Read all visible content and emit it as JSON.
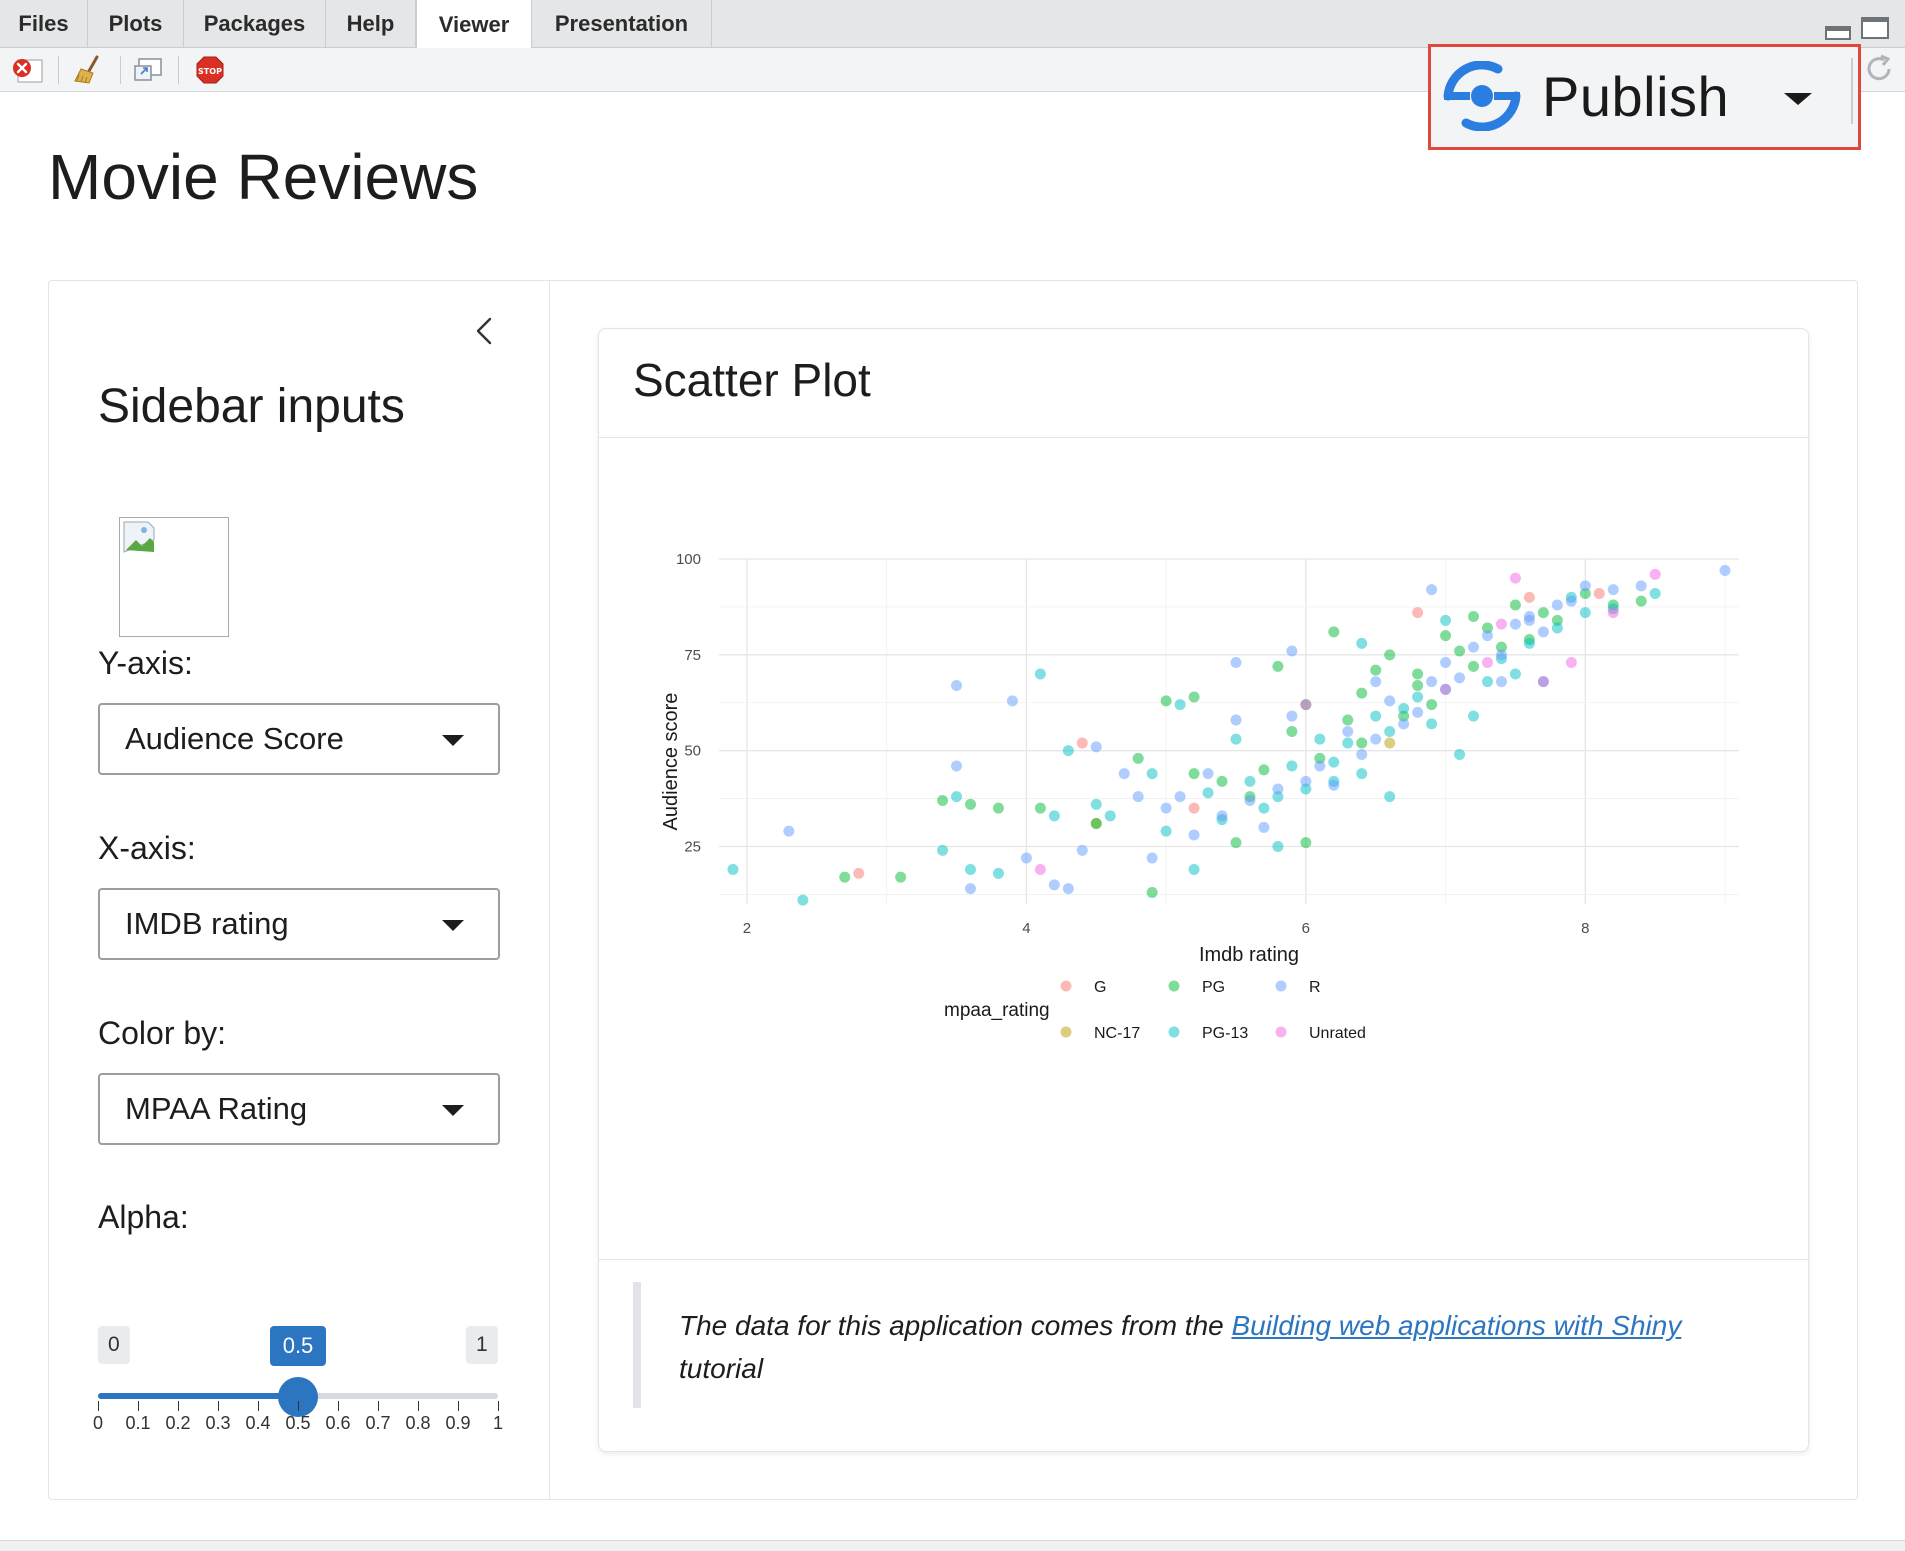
{
  "tabs": [
    "Files",
    "Plots",
    "Packages",
    "Help",
    "Viewer",
    "Presentation"
  ],
  "active_tab": "Viewer",
  "publish": {
    "label": "Publish"
  },
  "page_title": "Movie Reviews",
  "sidebar": {
    "title": "Sidebar inputs",
    "y_axis": {
      "label": "Y-axis:",
      "value": "Audience Score"
    },
    "x_axis": {
      "label": "X-axis:",
      "value": "IMDB rating"
    },
    "color_by": {
      "label": "Color by:",
      "value": "MPAA Rating"
    },
    "alpha": {
      "label": "Alpha:",
      "min": "0",
      "max": "1",
      "value": "0.5",
      "value_fraction": 0.5,
      "ticks": [
        "0",
        "0.1",
        "0.2",
        "0.3",
        "0.4",
        "0.5",
        "0.6",
        "0.7",
        "0.8",
        "0.9",
        "1"
      ]
    }
  },
  "card": {
    "title": "Scatter Plot",
    "footer_text": "The data for this application comes from the ",
    "footer_link": "Building web applications with Shiny",
    "footer_tail": "tutorial"
  },
  "chart_data": {
    "type": "scatter",
    "xlabel": "Imdb rating",
    "ylabel": "Audience score",
    "xlim": [
      1.8,
      9.1
    ],
    "ylim": [
      10,
      100
    ],
    "xticks": [
      "2",
      "4",
      "6",
      "8"
    ],
    "yticks": [
      "25",
      "50",
      "75",
      "100"
    ],
    "legend_title": "mpaa_rating",
    "legend_position": "bottom",
    "alpha": 0.5,
    "series": [
      {
        "name": "G",
        "color": "#f8766d",
        "points": [
          [
            2.8,
            18
          ],
          [
            4.4,
            52
          ],
          [
            5.2,
            35
          ],
          [
            6.8,
            86
          ],
          [
            7.6,
            90
          ],
          [
            8.1,
            91
          ]
        ]
      },
      {
        "name": "NC-17",
        "color": "#b79f00",
        "points": [
          [
            4.5,
            31
          ],
          [
            6.6,
            52
          ]
        ]
      },
      {
        "name": "PG",
        "color": "#00ba38",
        "points": [
          [
            2.7,
            17
          ],
          [
            3.1,
            17
          ],
          [
            3.4,
            37
          ],
          [
            3.6,
            36
          ],
          [
            3.8,
            35
          ],
          [
            4.1,
            35
          ],
          [
            4.5,
            31
          ],
          [
            4.8,
            48
          ],
          [
            4.9,
            13
          ],
          [
            5.0,
            63
          ],
          [
            5.2,
            64
          ],
          [
            5.4,
            42
          ],
          [
            5.5,
            26
          ],
          [
            5.7,
            45
          ],
          [
            5.8,
            72
          ],
          [
            5.9,
            55
          ],
          [
            6.0,
            62
          ],
          [
            6.1,
            48
          ],
          [
            6.2,
            81
          ],
          [
            6.3,
            58
          ],
          [
            6.4,
            65
          ],
          [
            6.5,
            71
          ],
          [
            6.6,
            75
          ],
          [
            6.7,
            59
          ],
          [
            6.8,
            70
          ],
          [
            6.9,
            62
          ],
          [
            7.0,
            80
          ],
          [
            7.1,
            76
          ],
          [
            7.2,
            85
          ],
          [
            7.3,
            82
          ],
          [
            7.4,
            77
          ],
          [
            7.5,
            88
          ],
          [
            7.6,
            79
          ],
          [
            7.7,
            86
          ],
          [
            7.8,
            84
          ],
          [
            8.0,
            91
          ],
          [
            8.2,
            88
          ],
          [
            8.4,
            89
          ],
          [
            5.2,
            44
          ],
          [
            5.6,
            38
          ],
          [
            6.0,
            26
          ],
          [
            6.4,
            52
          ],
          [
            6.8,
            67
          ],
          [
            7.2,
            72
          ]
        ]
      },
      {
        "name": "PG-13",
        "color": "#00bfc4",
        "points": [
          [
            1.9,
            19
          ],
          [
            2.4,
            11
          ],
          [
            3.4,
            24
          ],
          [
            3.5,
            38
          ],
          [
            3.6,
            19
          ],
          [
            3.8,
            18
          ],
          [
            4.1,
            70
          ],
          [
            4.2,
            33
          ],
          [
            4.3,
            50
          ],
          [
            4.5,
            36
          ],
          [
            4.6,
            33
          ],
          [
            4.9,
            44
          ],
          [
            5.0,
            29
          ],
          [
            5.1,
            62
          ],
          [
            5.2,
            19
          ],
          [
            5.3,
            39
          ],
          [
            5.4,
            32
          ],
          [
            5.5,
            53
          ],
          [
            5.6,
            42
          ],
          [
            5.7,
            35
          ],
          [
            5.8,
            38
          ],
          [
            5.9,
            46
          ],
          [
            6.0,
            40
          ],
          [
            6.1,
            53
          ],
          [
            6.2,
            47
          ],
          [
            6.3,
            52
          ],
          [
            6.4,
            44
          ],
          [
            6.5,
            59
          ],
          [
            6.6,
            55
          ],
          [
            6.7,
            61
          ],
          [
            6.8,
            64
          ],
          [
            6.9,
            57
          ],
          [
            7.0,
            66
          ],
          [
            7.1,
            49
          ],
          [
            7.2,
            59
          ],
          [
            7.3,
            68
          ],
          [
            7.4,
            74
          ],
          [
            7.5,
            70
          ],
          [
            7.6,
            78
          ],
          [
            7.7,
            68
          ],
          [
            7.8,
            82
          ],
          [
            7.9,
            90
          ],
          [
            8.0,
            86
          ],
          [
            8.2,
            87
          ],
          [
            8.5,
            91
          ],
          [
            6.4,
            78
          ],
          [
            6.6,
            38
          ],
          [
            7.0,
            84
          ],
          [
            5.8,
            25
          ],
          [
            6.2,
            42
          ]
        ]
      },
      {
        "name": "R",
        "color": "#619cff",
        "points": [
          [
            2.3,
            29
          ],
          [
            3.5,
            67
          ],
          [
            3.5,
            46
          ],
          [
            3.6,
            14
          ],
          [
            3.9,
            63
          ],
          [
            4.0,
            22
          ],
          [
            4.2,
            15
          ],
          [
            4.3,
            14
          ],
          [
            4.4,
            24
          ],
          [
            4.5,
            51
          ],
          [
            4.7,
            44
          ],
          [
            4.8,
            38
          ],
          [
            4.9,
            22
          ],
          [
            5.0,
            35
          ],
          [
            5.1,
            38
          ],
          [
            5.2,
            28
          ],
          [
            5.3,
            44
          ],
          [
            5.4,
            33
          ],
          [
            5.5,
            58
          ],
          [
            5.6,
            37
          ],
          [
            5.7,
            30
          ],
          [
            5.8,
            40
          ],
          [
            5.9,
            59
          ],
          [
            6.0,
            42
          ],
          [
            6.1,
            46
          ],
          [
            6.2,
            41
          ],
          [
            6.3,
            55
          ],
          [
            6.4,
            49
          ],
          [
            6.5,
            53
          ],
          [
            6.6,
            63
          ],
          [
            6.7,
            57
          ],
          [
            6.8,
            60
          ],
          [
            6.9,
            68
          ],
          [
            7.0,
            73
          ],
          [
            7.1,
            69
          ],
          [
            7.2,
            77
          ],
          [
            7.3,
            80
          ],
          [
            7.4,
            75
          ],
          [
            7.5,
            83
          ],
          [
            7.6,
            85
          ],
          [
            7.7,
            81
          ],
          [
            7.8,
            88
          ],
          [
            7.9,
            89
          ],
          [
            8.0,
            93
          ],
          [
            8.2,
            92
          ],
          [
            8.4,
            93
          ],
          [
            9.0,
            97
          ],
          [
            5.5,
            73
          ],
          [
            5.9,
            76
          ],
          [
            6.5,
            68
          ],
          [
            6.9,
            92
          ],
          [
            7.4,
            68
          ],
          [
            7.6,
            84
          ]
        ]
      },
      {
        "name": "Unrated",
        "color": "#f564e3",
        "points": [
          [
            4.1,
            19
          ],
          [
            6.0,
            62
          ],
          [
            7.0,
            66
          ],
          [
            7.3,
            73
          ],
          [
            7.5,
            95
          ],
          [
            7.7,
            68
          ],
          [
            7.9,
            73
          ],
          [
            8.2,
            86
          ],
          [
            8.5,
            96
          ],
          [
            7.4,
            83
          ]
        ]
      }
    ]
  }
}
